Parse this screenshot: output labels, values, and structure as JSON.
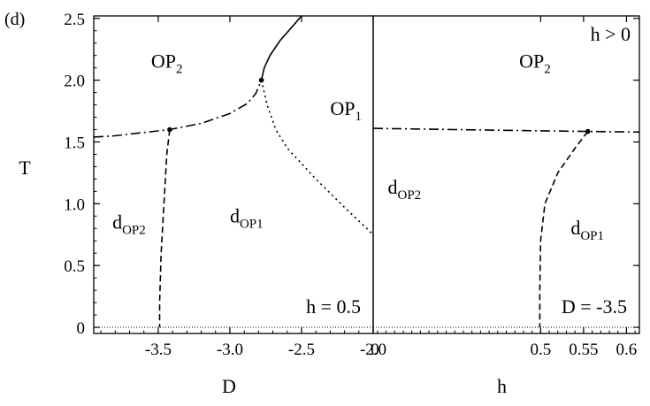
{
  "panel_label": "(d)",
  "chart_data": [
    {
      "type": "line",
      "panel": "left",
      "xlabel": "D",
      "ylabel": "T",
      "xlim": [
        -3.95,
        -2.0
      ],
      "ylim": [
        -0.05,
        2.52
      ],
      "x_ticks": [
        -3.5,
        -3.0,
        -2.5,
        -2.0
      ],
      "x_tick_labels": [
        "-3.5",
        "-3.0",
        "-2.5",
        "-2.0"
      ],
      "y_ticks": [
        0,
        0.5,
        1.0,
        1.5,
        2.0,
        2.5
      ],
      "y_tick_labels": [
        "0",
        "0.5",
        "1.0",
        "1.5",
        "2.0",
        "2.5"
      ],
      "annotation": "h = 0.5",
      "regions": [
        {
          "main": "OP",
          "sub": "2",
          "x": -3.55,
          "y": 2.1
        },
        {
          "main": "OP",
          "sub": "1",
          "x": -2.3,
          "y": 1.72
        },
        {
          "main": "d",
          "sub": "OP2",
          "x": -3.82,
          "y": 0.8
        },
        {
          "main": "d",
          "sub": "OP1",
          "x": -3.0,
          "y": 0.85
        }
      ],
      "series": [
        {
          "style": "solid",
          "points": [
            [
              -2.78,
              2.0
            ],
            [
              -2.76,
              2.1
            ],
            [
              -2.72,
              2.2
            ],
            [
              -2.65,
              2.32
            ],
            [
              -2.56,
              2.44
            ],
            [
              -2.5,
              2.52
            ]
          ]
        },
        {
          "style": "dash-dot",
          "points": [
            [
              -3.95,
              1.54
            ],
            [
              -3.8,
              1.55
            ],
            [
              -3.65,
              1.57
            ],
            [
              -3.42,
              1.6
            ],
            [
              -3.2,
              1.65
            ],
            [
              -3.0,
              1.73
            ],
            [
              -2.88,
              1.81
            ],
            [
              -2.82,
              1.89
            ],
            [
              -2.78,
              2.0
            ]
          ]
        },
        {
          "style": "dotted",
          "points": [
            [
              -2.78,
              2.0
            ],
            [
              -2.74,
              1.8
            ],
            [
              -2.68,
              1.6
            ],
            [
              -2.6,
              1.45
            ],
            [
              -2.4,
              1.2
            ],
            [
              -2.2,
              0.97
            ],
            [
              -2.0,
              0.75
            ]
          ]
        },
        {
          "style": "dashed",
          "points": [
            [
              -3.42,
              1.6
            ],
            [
              -3.44,
              1.4
            ],
            [
              -3.46,
              1.0
            ],
            [
              -3.48,
              0.6
            ],
            [
              -3.49,
              0.2
            ],
            [
              -3.49,
              0.0
            ]
          ]
        },
        {
          "style": "fine-dotted",
          "points": [
            [
              -3.95,
              0.0
            ],
            [
              -2.0,
              0.0
            ]
          ]
        }
      ],
      "points": [
        [
          -2.78,
          2.0
        ],
        [
          -3.42,
          1.6
        ]
      ]
    },
    {
      "type": "line",
      "panel": "right",
      "xlabel": "h",
      "xlim": [
        0.305,
        0.615
      ],
      "ylim": [
        -0.05,
        2.52
      ],
      "x_ticks": [
        0.5,
        0.55,
        0.6
      ],
      "x_tick_labels": [
        "0.5",
        "0.55",
        "0.6"
      ],
      "x_left_label": "0",
      "annotation": "D = -3.5",
      "corner_annotation": "h > 0",
      "regions": [
        {
          "main": "OP",
          "sub": "2",
          "x": 0.475,
          "y": 2.1
        },
        {
          "main": "d",
          "sub": "OP2",
          "x": 0.322,
          "y": 1.08
        },
        {
          "main": "d",
          "sub": "OP1",
          "x": 0.535,
          "y": 0.75
        }
      ],
      "series": [
        {
          "style": "dash-dot",
          "points": [
            [
              0.305,
              1.61
            ],
            [
              0.4,
              1.6
            ],
            [
              0.5,
              1.59
            ],
            [
              0.555,
              1.585
            ],
            [
              0.615,
              1.58
            ]
          ]
        },
        {
          "style": "dashed",
          "points": [
            [
              0.555,
              1.585
            ],
            [
              0.54,
              1.45
            ],
            [
              0.52,
              1.25
            ],
            [
              0.505,
              1.0
            ],
            [
              0.5,
              0.7
            ],
            [
              0.499,
              0.3
            ],
            [
              0.499,
              0.0
            ]
          ]
        },
        {
          "style": "fine-dotted",
          "points": [
            [
              0.305,
              0.0
            ],
            [
              0.615,
              0.0
            ]
          ]
        }
      ],
      "points": [
        [
          0.555,
          1.585
        ]
      ]
    }
  ]
}
